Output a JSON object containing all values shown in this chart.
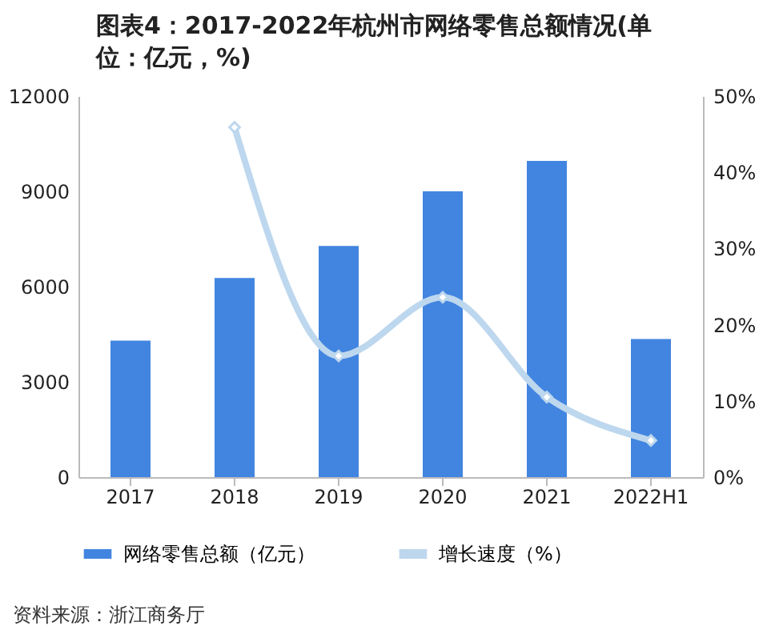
{
  "chart_data": {
    "type": "bar",
    "title": "图表4：2017-2022年杭州市网络零售总额情况(单位：亿元，%)",
    "categories": [
      "2017",
      "2018",
      "2019",
      "2020",
      "2021",
      "2022H1"
    ],
    "series": [
      {
        "name": "网络零售总额（亿元）",
        "color": "#4285e0",
        "values": [
          4300,
          6270,
          7280,
          9000,
          9960,
          4350
        ]
      },
      {
        "name": "增长速度（%）",
        "type": "line",
        "axis": "y2",
        "color": "#bdd7ee",
        "values": [
          null,
          45.9,
          15.9,
          23.6,
          10.5,
          4.8
        ]
      }
    ],
    "ylim": [
      0,
      12000
    ],
    "yticks": [
      0,
      3000,
      6000,
      9000,
      12000
    ],
    "y2lim": [
      0,
      50
    ],
    "y2ticks": [
      {
        "value": 0,
        "label": "0%"
      },
      {
        "value": 10,
        "label": "10%"
      },
      {
        "value": 20,
        "label": "20%"
      },
      {
        "value": 30,
        "label": "30%"
      },
      {
        "value": 40,
        "label": "40%"
      },
      {
        "value": 50,
        "label": "50%"
      }
    ],
    "legend": "bottom",
    "marker": "diamond",
    "line_style": "solid",
    "grid": false,
    "annotations": [
      "资料来源：浙江商务厅"
    ]
  }
}
